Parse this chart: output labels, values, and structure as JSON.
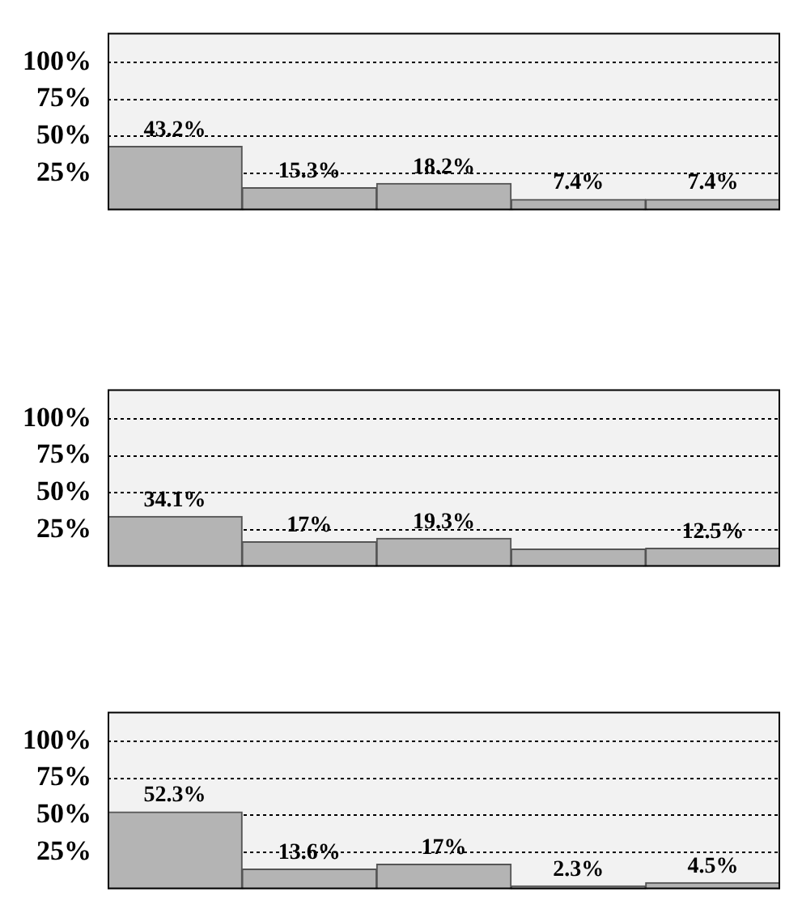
{
  "chart_data": [
    {
      "type": "bar",
      "categories": [
        null,
        null,
        null,
        null,
        null
      ],
      "values": [
        43.2,
        15.3,
        18.2,
        7.4,
        7.4
      ],
      "value_labels": [
        "43.2%",
        "15.3%",
        "18.2%",
        "7.4%",
        "7.4%"
      ],
      "color": "#b4b4b4",
      "ylim": [
        0,
        120
      ],
      "yticks": [
        {
          "value": 25,
          "label": "25%"
        },
        {
          "value": 50,
          "label": "50%"
        },
        {
          "value": 75,
          "label": "75%"
        },
        {
          "value": 100,
          "label": "100%"
        }
      ],
      "grid": "y",
      "legend": false
    },
    {
      "type": "bar",
      "categories": [
        null,
        null,
        null,
        null,
        null
      ],
      "values": [
        34.1,
        17,
        19.3,
        12,
        12.5
      ],
      "value_labels": [
        "34.1%",
        "17%",
        "19.3%",
        null,
        "12.5%"
      ],
      "color": "#b4b4b4",
      "ylim": [
        0,
        120
      ],
      "yticks": [
        {
          "value": 25,
          "label": "25%"
        },
        {
          "value": 50,
          "label": "50%"
        },
        {
          "value": 75,
          "label": "75%"
        },
        {
          "value": 100,
          "label": "100%"
        }
      ],
      "grid": "y",
      "legend": false
    },
    {
      "type": "bar",
      "categories": [
        null,
        null,
        null,
        null,
        null
      ],
      "values": [
        52.3,
        13.6,
        17,
        2.3,
        4.5
      ],
      "value_labels": [
        "52.3%",
        "13.6%",
        "17%",
        "2.3%",
        "4.5%"
      ],
      "color": "#b4b4b4",
      "ylim": [
        0,
        120
      ],
      "yticks": [
        {
          "value": 25,
          "label": "25%"
        },
        {
          "value": 50,
          "label": "50%"
        },
        {
          "value": 75,
          "label": "75%"
        },
        {
          "value": 100,
          "label": "100%"
        }
      ],
      "grid": "y",
      "legend": false
    }
  ]
}
